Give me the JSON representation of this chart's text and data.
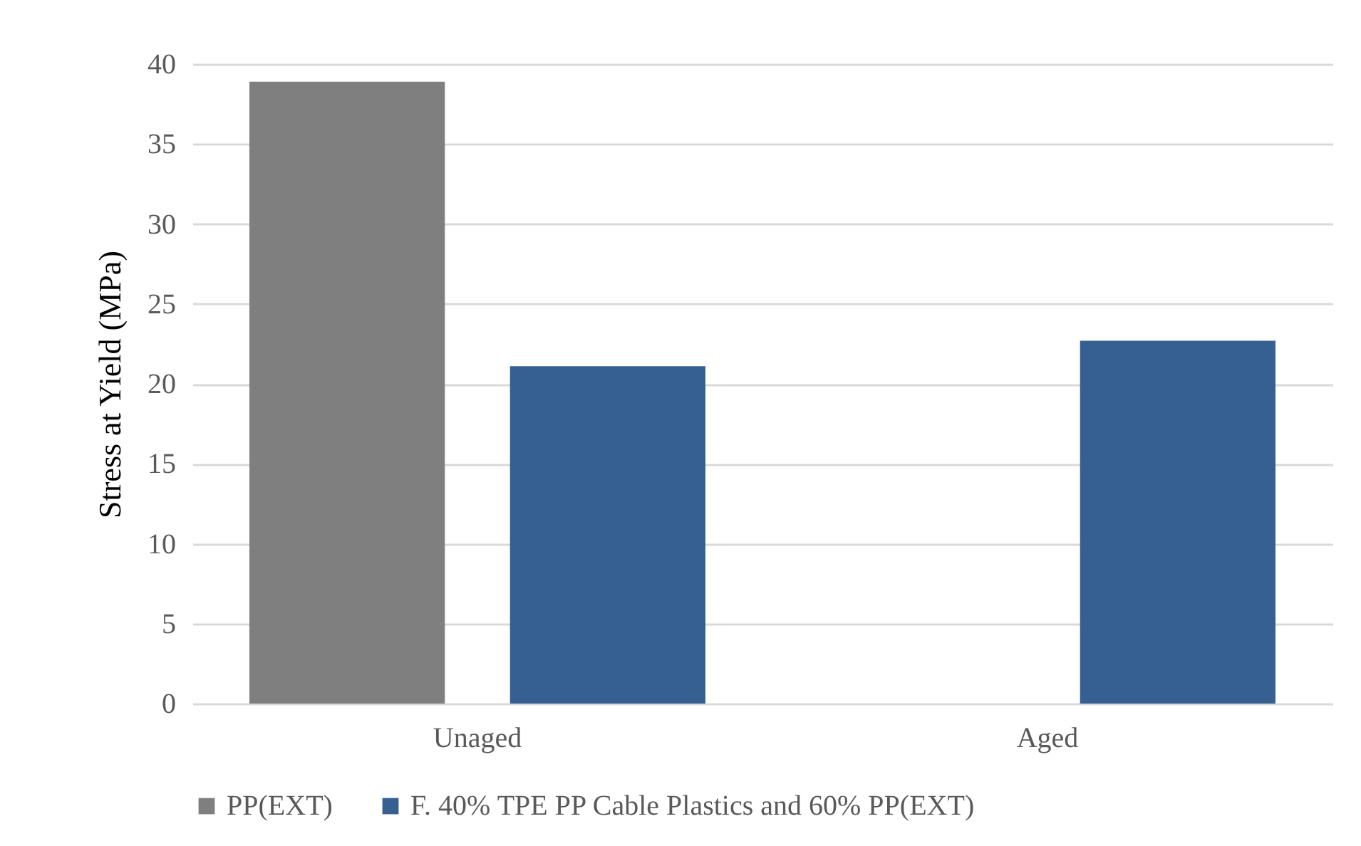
{
  "chart_data": {
    "type": "bar",
    "ylabel": "Stress at Yield (MPa)",
    "categories": [
      "Unaged",
      "Aged"
    ],
    "series": [
      {
        "name": "PP(EXT)",
        "color": "#7f7f7f",
        "values": [
          38.9,
          null
        ]
      },
      {
        "name": "F. 40% TPE PP Cable Plastics and 60% PP(EXT)",
        "color": "#376092",
        "values": [
          21.1,
          22.7
        ]
      }
    ],
    "ylim": [
      0,
      40
    ],
    "yticks": [
      0,
      5,
      10,
      15,
      20,
      25,
      30,
      35,
      40
    ],
    "grid": "y",
    "legend": "bottom"
  }
}
